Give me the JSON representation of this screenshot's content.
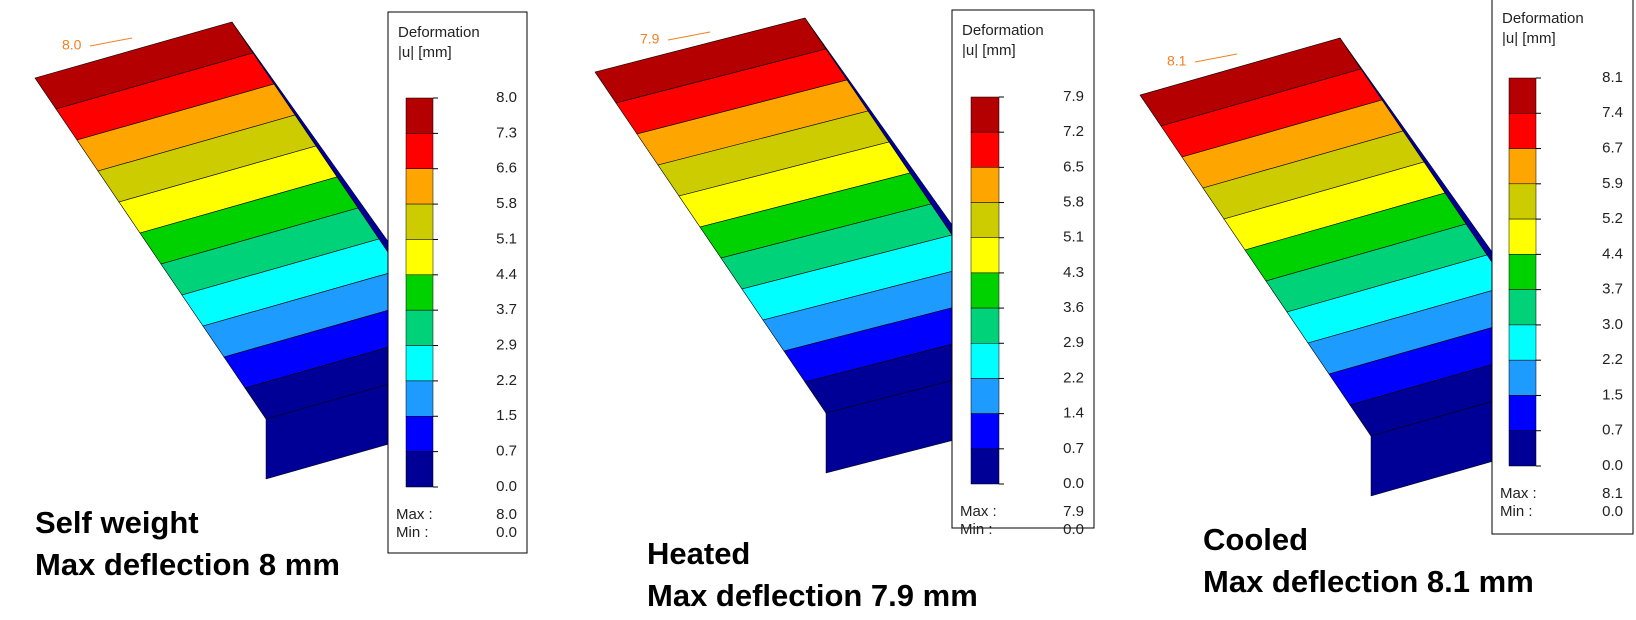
{
  "panels": [
    {
      "probe": "8.0",
      "legend": {
        "title": [
          "Deformation",
          "|u| [mm]"
        ],
        "levels": [
          "8.0",
          "7.3",
          "6.6",
          "5.8",
          "5.1",
          "4.4",
          "3.7",
          "2.9",
          "2.2",
          "1.5",
          "0.7",
          "0.0"
        ],
        "max_label": "Max :",
        "max": "8.0",
        "min_label": "Min :",
        "min": "0.0"
      },
      "caption": [
        "Self weight",
        "Max deflection 8 mm"
      ]
    },
    {
      "probe": "7.9",
      "legend": {
        "title": [
          "Deformation",
          "|u| [mm]"
        ],
        "levels": [
          "7.9",
          "7.2",
          "6.5",
          "5.8",
          "5.1",
          "4.3",
          "3.6",
          "2.9",
          "2.2",
          "1.4",
          "0.7",
          "0.0"
        ],
        "max_label": "Max :",
        "max": "7.9",
        "min_label": "Min :",
        "min": "0.0"
      },
      "caption": [
        "Heated",
        "Max deflection 7.9 mm"
      ]
    },
    {
      "probe": "8.1",
      "legend": {
        "title": [
          "Deformation",
          "|u| [mm]"
        ],
        "levels": [
          "8.1",
          "7.4",
          "6.7",
          "5.9",
          "5.2",
          "4.4",
          "3.7",
          "3.0",
          "2.2",
          "1.5",
          "0.7",
          "0.0"
        ],
        "max_label": "Max :",
        "max": "8.1",
        "min_label": "Min :",
        "min": "0.0"
      },
      "caption": [
        "Cooled",
        "Max deflection 8.1 mm"
      ]
    }
  ]
}
